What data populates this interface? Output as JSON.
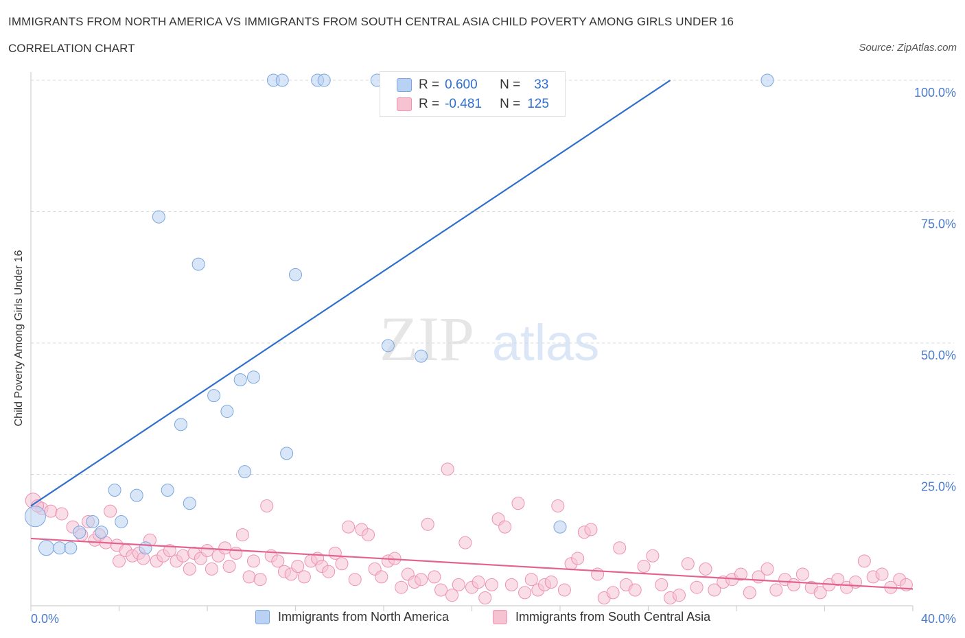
{
  "title": "IMMIGRANTS FROM NORTH AMERICA VS IMMIGRANTS FROM SOUTH CENTRAL ASIA CHILD POVERTY AMONG GIRLS UNDER 16",
  "subtitle": "CORRELATION CHART",
  "source": "Source: ZipAtlas.com",
  "watermark": {
    "zip": "ZIP",
    "atlas": "atlas"
  },
  "colors": {
    "blue_fill": "#b9d2f3",
    "blue_stroke": "#7aa6e0",
    "blue_line": "#2e6fcb",
    "pink_fill": "#f6c3d3",
    "pink_stroke": "#ee91b0",
    "pink_line": "#e3638d",
    "axis_text": "#4a7ac9",
    "grid": "#d9d9d9"
  },
  "legend": {
    "rows": [
      {
        "r_label": "R =",
        "r_value": "0.600",
        "n_label": "N =",
        "n_value": "33",
        "color": "#b9d2f3",
        "border": "#7aa6e0"
      },
      {
        "r_label": "R =",
        "r_value": "-0.481",
        "n_label": "N =",
        "n_value": "125",
        "color": "#f6c3d3",
        "border": "#ee91b0"
      }
    ]
  },
  "bottom_legend": [
    {
      "label": "Immigrants from North America",
      "color": "#b9d2f3",
      "border": "#7aa6e0"
    },
    {
      "label": "Immigrants from South Central Asia",
      "color": "#f6c3d3",
      "border": "#ee91b0"
    }
  ],
  "chart_data": {
    "type": "scatter",
    "title": "IMMIGRANTS FROM NORTH AMERICA VS IMMIGRANTS FROM SOUTH CENTRAL ASIA CHILD POVERTY AMONG GIRLS UNDER 16",
    "xlabel": "",
    "ylabel": "Child Poverty Among Girls Under 16",
    "xlim": [
      0,
      40
    ],
    "ylim": [
      0,
      100
    ],
    "x_tick_labels": [
      "0.0%",
      "40.0%"
    ],
    "y_tick_labels": [
      "25.0%",
      "50.0%",
      "75.0%",
      "100.0%"
    ],
    "y_ticks": [
      25,
      50,
      75,
      100
    ],
    "grid": true,
    "legend_position": "top-center",
    "series": [
      {
        "name": "Immigrants from North America",
        "R": 0.6,
        "N": 33,
        "trend": {
          "x": [
            0,
            29
          ],
          "y": [
            19.0,
            100
          ]
        },
        "points": [
          [
            0.2,
            17,
            3
          ],
          [
            0.7,
            11,
            2
          ],
          [
            1.3,
            11,
            1
          ],
          [
            1.8,
            11,
            1
          ],
          [
            2.2,
            14,
            1
          ],
          [
            2.8,
            16,
            1
          ],
          [
            3.2,
            14,
            1
          ],
          [
            3.8,
            22,
            1
          ],
          [
            4.1,
            16,
            1
          ],
          [
            4.8,
            21,
            1
          ],
          [
            5.2,
            11,
            1
          ],
          [
            5.8,
            74,
            1
          ],
          [
            6.2,
            22,
            1
          ],
          [
            6.8,
            34.5,
            1
          ],
          [
            7.2,
            19.5,
            1
          ],
          [
            7.6,
            65,
            1
          ],
          [
            8.3,
            40,
            1
          ],
          [
            8.9,
            37,
            1
          ],
          [
            9.5,
            43,
            1
          ],
          [
            9.7,
            25.5,
            1
          ],
          [
            10.1,
            43.5,
            1
          ],
          [
            11.0,
            100,
            1
          ],
          [
            11.4,
            100,
            1
          ],
          [
            11.6,
            29,
            1
          ],
          [
            12.0,
            63,
            1
          ],
          [
            13.0,
            100,
            1
          ],
          [
            13.3,
            100,
            1
          ],
          [
            15.7,
            100,
            1
          ],
          [
            16.2,
            49.5,
            1
          ],
          [
            17.1,
            100,
            1
          ],
          [
            17.7,
            47.5,
            1
          ],
          [
            24.0,
            15,
            1
          ],
          [
            33.4,
            100,
            1
          ]
        ]
      },
      {
        "name": "Immigrants from South Central Asia",
        "R": -0.481,
        "N": 125,
        "trend": {
          "x": [
            0,
            40
          ],
          "y": [
            12.8,
            3.2
          ]
        },
        "points": [
          [
            0.1,
            20,
            2
          ],
          [
            0.5,
            18.5,
            1
          ],
          [
            0.9,
            18,
            1
          ],
          [
            1.4,
            17.5,
            1
          ],
          [
            1.9,
            15,
            1
          ],
          [
            2.3,
            13.5,
            1
          ],
          [
            2.6,
            16,
            1
          ],
          [
            2.9,
            12.5,
            1
          ],
          [
            3.1,
            13.5,
            1
          ],
          [
            3.4,
            12,
            1
          ],
          [
            3.6,
            18,
            1
          ],
          [
            3.9,
            11.5,
            1
          ],
          [
            4.0,
            8.5,
            1
          ],
          [
            4.3,
            10.5,
            1
          ],
          [
            4.6,
            9.5,
            1
          ],
          [
            4.9,
            10,
            1
          ],
          [
            5.1,
            9,
            1
          ],
          [
            5.4,
            12.5,
            1
          ],
          [
            5.7,
            8.5,
            1
          ],
          [
            6.0,
            9.5,
            1
          ],
          [
            6.3,
            10.5,
            1
          ],
          [
            6.6,
            8.5,
            1
          ],
          [
            6.9,
            9.5,
            1
          ],
          [
            7.2,
            7,
            1
          ],
          [
            7.4,
            10,
            1
          ],
          [
            7.7,
            9,
            1
          ],
          [
            8.0,
            10.5,
            1
          ],
          [
            8.2,
            7,
            1
          ],
          [
            8.5,
            9.5,
            1
          ],
          [
            8.8,
            11,
            1
          ],
          [
            9.0,
            7.5,
            1
          ],
          [
            9.3,
            10,
            1
          ],
          [
            9.6,
            13.5,
            1
          ],
          [
            9.9,
            5.5,
            1
          ],
          [
            10.1,
            8.5,
            1
          ],
          [
            10.4,
            5,
            1
          ],
          [
            10.7,
            19,
            1
          ],
          [
            10.9,
            9.5,
            1
          ],
          [
            11.2,
            8.5,
            1
          ],
          [
            11.5,
            6.5,
            1
          ],
          [
            11.8,
            6,
            1
          ],
          [
            12.1,
            7.5,
            1
          ],
          [
            12.4,
            5.5,
            1
          ],
          [
            12.7,
            8.5,
            1
          ],
          [
            13.0,
            9,
            1
          ],
          [
            13.2,
            7.5,
            1
          ],
          [
            13.5,
            6.5,
            1
          ],
          [
            13.8,
            10,
            1
          ],
          [
            14.1,
            8,
            1
          ],
          [
            14.4,
            15,
            1
          ],
          [
            14.7,
            5,
            1
          ],
          [
            15.0,
            14.5,
            1
          ],
          [
            15.3,
            13.5,
            1
          ],
          [
            15.6,
            7,
            1
          ],
          [
            15.9,
            5.5,
            1
          ],
          [
            16.2,
            8.5,
            1
          ],
          [
            16.5,
            9,
            1
          ],
          [
            16.8,
            3.5,
            1
          ],
          [
            17.1,
            6,
            1
          ],
          [
            17.4,
            4.5,
            1
          ],
          [
            17.7,
            5,
            1
          ],
          [
            18.0,
            15.5,
            1
          ],
          [
            18.3,
            5.5,
            1
          ],
          [
            18.6,
            3,
            1
          ],
          [
            18.9,
            26,
            1
          ],
          [
            19.1,
            2,
            1
          ],
          [
            19.4,
            4,
            1
          ],
          [
            19.7,
            12,
            1
          ],
          [
            20.0,
            3.5,
            1
          ],
          [
            20.3,
            4.5,
            1
          ],
          [
            20.6,
            1.5,
            1
          ],
          [
            20.9,
            4,
            1
          ],
          [
            21.2,
            16.5,
            1
          ],
          [
            21.5,
            15,
            1
          ],
          [
            21.8,
            4,
            1
          ],
          [
            22.1,
            19.5,
            1
          ],
          [
            22.4,
            2.5,
            1
          ],
          [
            22.7,
            5,
            1
          ],
          [
            23.0,
            3,
            1
          ],
          [
            23.3,
            4,
            1
          ],
          [
            23.6,
            4.5,
            1
          ],
          [
            23.9,
            19,
            1
          ],
          [
            24.2,
            3,
            1
          ],
          [
            24.5,
            8,
            1
          ],
          [
            24.8,
            9,
            1
          ],
          [
            25.1,
            14,
            1
          ],
          [
            25.4,
            14.5,
            1
          ],
          [
            25.7,
            6,
            1
          ],
          [
            26.0,
            1.5,
            1
          ],
          [
            26.4,
            2.5,
            1
          ],
          [
            26.7,
            11,
            1
          ],
          [
            27.0,
            4,
            1
          ],
          [
            27.4,
            3,
            1
          ],
          [
            27.8,
            7.5,
            1
          ],
          [
            28.2,
            9.5,
            1
          ],
          [
            28.6,
            4,
            1
          ],
          [
            29.0,
            1.5,
            1
          ],
          [
            29.4,
            2,
            1
          ],
          [
            29.8,
            8,
            1
          ],
          [
            30.2,
            3.5,
            1
          ],
          [
            30.6,
            7,
            1
          ],
          [
            31.0,
            3,
            1
          ],
          [
            31.4,
            4.5,
            1
          ],
          [
            31.8,
            5,
            1
          ],
          [
            32.2,
            6,
            1
          ],
          [
            32.6,
            2.5,
            1
          ],
          [
            33.0,
            5.5,
            1
          ],
          [
            33.4,
            7,
            1
          ],
          [
            33.8,
            3,
            1
          ],
          [
            34.2,
            5,
            1
          ],
          [
            34.6,
            4,
            1
          ],
          [
            35.0,
            6,
            1
          ],
          [
            35.4,
            3.5,
            1
          ],
          [
            35.8,
            2.5,
            1
          ],
          [
            36.2,
            4,
            1
          ],
          [
            36.6,
            5,
            1
          ],
          [
            37.0,
            3.5,
            1
          ],
          [
            37.4,
            4.5,
            1
          ],
          [
            37.8,
            8.5,
            1
          ],
          [
            38.2,
            5.5,
            1
          ],
          [
            38.6,
            6,
            1
          ],
          [
            39.0,
            3.5,
            1
          ],
          [
            39.4,
            5,
            1
          ],
          [
            39.7,
            4,
            1
          ],
          [
            0.3,
            19,
            1
          ]
        ]
      }
    ]
  }
}
